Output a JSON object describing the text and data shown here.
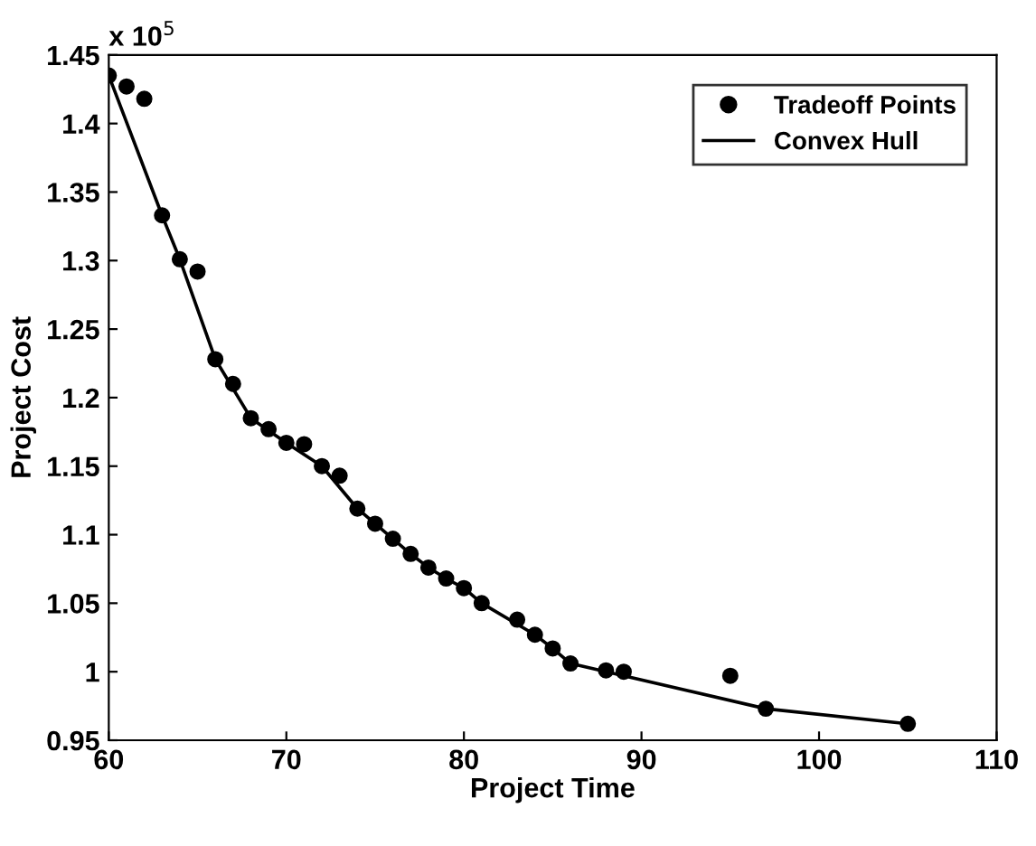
{
  "chart_data": {
    "type": "scatter",
    "xlabel": "Project Time",
    "ylabel": "Project Cost",
    "annotations": [
      "x 10$^{5}$"
    ],
    "xlim": [
      60,
      110
    ],
    "xticks": [
      60,
      70,
      80,
      90,
      100,
      110
    ],
    "ylim": [
      0.95,
      1.45
    ],
    "yticks": [
      0.95,
      1,
      1.05,
      1.1,
      1.15,
      1.2,
      1.25,
      1.3,
      1.35,
      1.4,
      1.45
    ],
    "grid": false,
    "legend": "top right",
    "series": [
      {
        "name": "Tradeoff Points",
        "marker": "circle",
        "color": "#000000",
        "x": [
          60,
          61,
          62,
          63,
          64,
          65,
          66,
          67,
          68,
          69,
          70,
          71,
          72,
          73,
          74,
          75,
          76,
          77,
          78,
          79,
          80,
          81,
          83,
          84,
          85,
          86,
          88,
          89,
          95,
          97,
          105
        ],
        "values": [
          1.435,
          1.427,
          1.418,
          1.333,
          1.301,
          1.292,
          1.228,
          1.21,
          1.185,
          1.177,
          1.167,
          1.166,
          1.15,
          1.143,
          1.119,
          1.108,
          1.097,
          1.086,
          1.076,
          1.068,
          1.061,
          1.05,
          1.038,
          1.027,
          1.017,
          1.006,
          1.001,
          1.0,
          0.997,
          0.973,
          0.962
        ]
      },
      {
        "name": "Convex Hull",
        "type": "line",
        "marker": "none",
        "line_style": "solid",
        "color": "#000000",
        "x": [
          60,
          63,
          64,
          66,
          68,
          70,
          72,
          74,
          75,
          76,
          77,
          78,
          79,
          80,
          81,
          84,
          85,
          86,
          97,
          105
        ],
        "values": [
          1.435,
          1.333,
          1.301,
          1.228,
          1.185,
          1.167,
          1.15,
          1.119,
          1.108,
          1.097,
          1.086,
          1.076,
          1.068,
          1.061,
          1.05,
          1.027,
          1.017,
          1.006,
          0.973,
          0.962
        ]
      }
    ]
  }
}
